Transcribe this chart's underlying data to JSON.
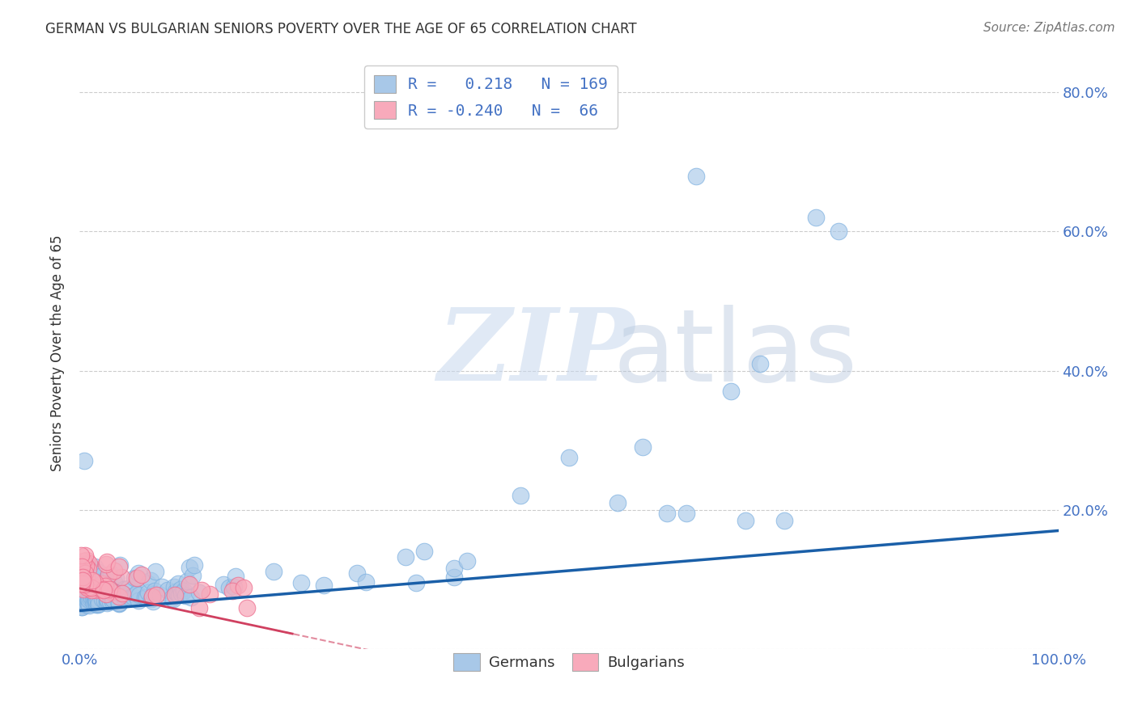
{
  "title": "GERMAN VS BULGARIAN SENIORS POVERTY OVER THE AGE OF 65 CORRELATION CHART",
  "source": "Source: ZipAtlas.com",
  "ylabel": "Seniors Poverty Over the Age of 65",
  "watermark_zip": "ZIP",
  "watermark_atlas": "atlas",
  "german_R": 0.218,
  "german_N": 169,
  "bulgarian_R": -0.24,
  "bulgarian_N": 66,
  "german_color": "#a8c8e8",
  "german_edge_color": "#7aafe0",
  "bulgarian_color": "#f8aabb",
  "bulgarian_edge_color": "#ee7090",
  "german_line_color": "#1a5fa8",
  "bulgarian_line_color": "#d04060",
  "axis_color": "#4472c4",
  "grid_color": "#cccccc",
  "title_color": "#333333",
  "background_color": "#ffffff",
  "source_color": "#777777",
  "watermark_color": "#c8d8ee",
  "watermark_atlas_color": "#b8c8de"
}
